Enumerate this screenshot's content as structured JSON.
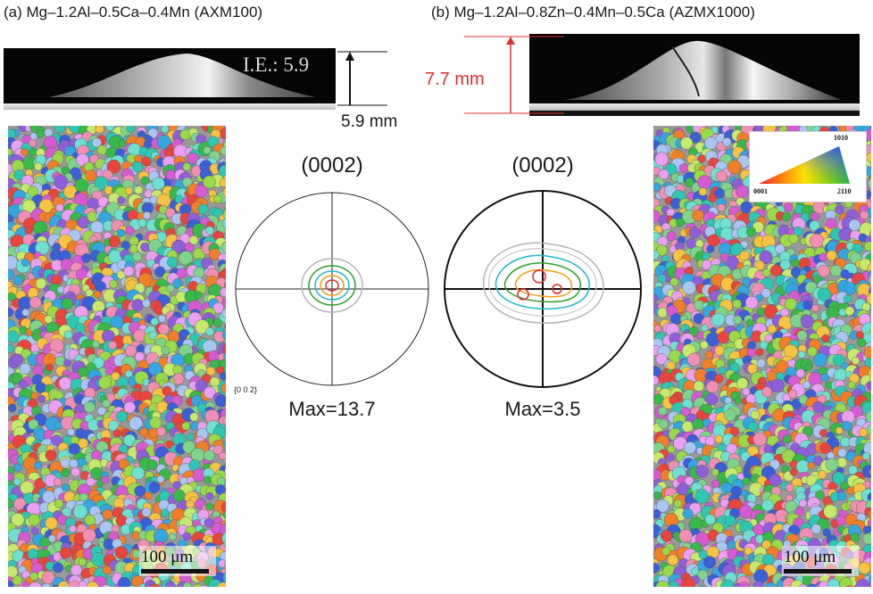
{
  "panel_a": {
    "title": "(a) Mg–1.2Al–0.5Ca–0.4Mn (AXM100)",
    "ie_label": "I.E.: 5.9",
    "height_label": "5.9 mm",
    "pole_figure": {
      "title": "(0002)",
      "max": "Max=13.7",
      "axis_label": "{0 0 2}"
    },
    "scale_bar": "100 μm"
  },
  "panel_b": {
    "title": "(b) Mg–1.2Al–0.8Zn–0.4Mn–0.5Ca (AZMX1000)",
    "height_label": "7.7 mm",
    "pole_figure": {
      "title": "(0002)",
      "max": "Max=3.5"
    },
    "scale_bar": "100 μm",
    "ipf_legend": {
      "top": "1010",
      "left": "0001",
      "right": "2110"
    }
  },
  "colors": {
    "dimension_red": "#e03030",
    "contour_red": "#e02b2b",
    "contour_orange": "#f39c12",
    "contour_green": "#2ca02c",
    "contour_cyan": "#1fb8c9",
    "contour_gray": "#b5b5b5"
  }
}
